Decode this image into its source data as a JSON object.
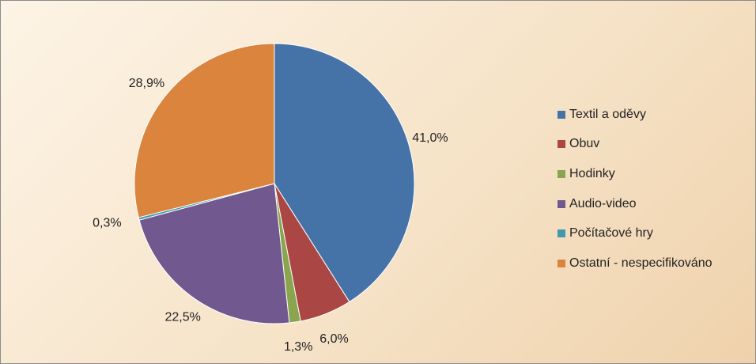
{
  "chart_data": {
    "type": "pie",
    "categories": [
      "Textil a oděvy",
      "Obuv",
      "Hodinky",
      "Audio-video",
      "Počítačové hry",
      "Ostatní - nespecifikováno"
    ],
    "values": [
      41.0,
      6.0,
      1.3,
      22.5,
      0.3,
      28.9
    ],
    "data_labels": [
      "41,0%",
      "6,0%",
      "1,3%",
      "22,5%",
      "0,3%",
      "28,9%"
    ],
    "colors": [
      "#4572a7",
      "#aa4643",
      "#89a54e",
      "#71588f",
      "#4198af",
      "#db843d"
    ],
    "legend_position": "right",
    "start_angle": "12 o'clock",
    "direction": "clockwise"
  }
}
